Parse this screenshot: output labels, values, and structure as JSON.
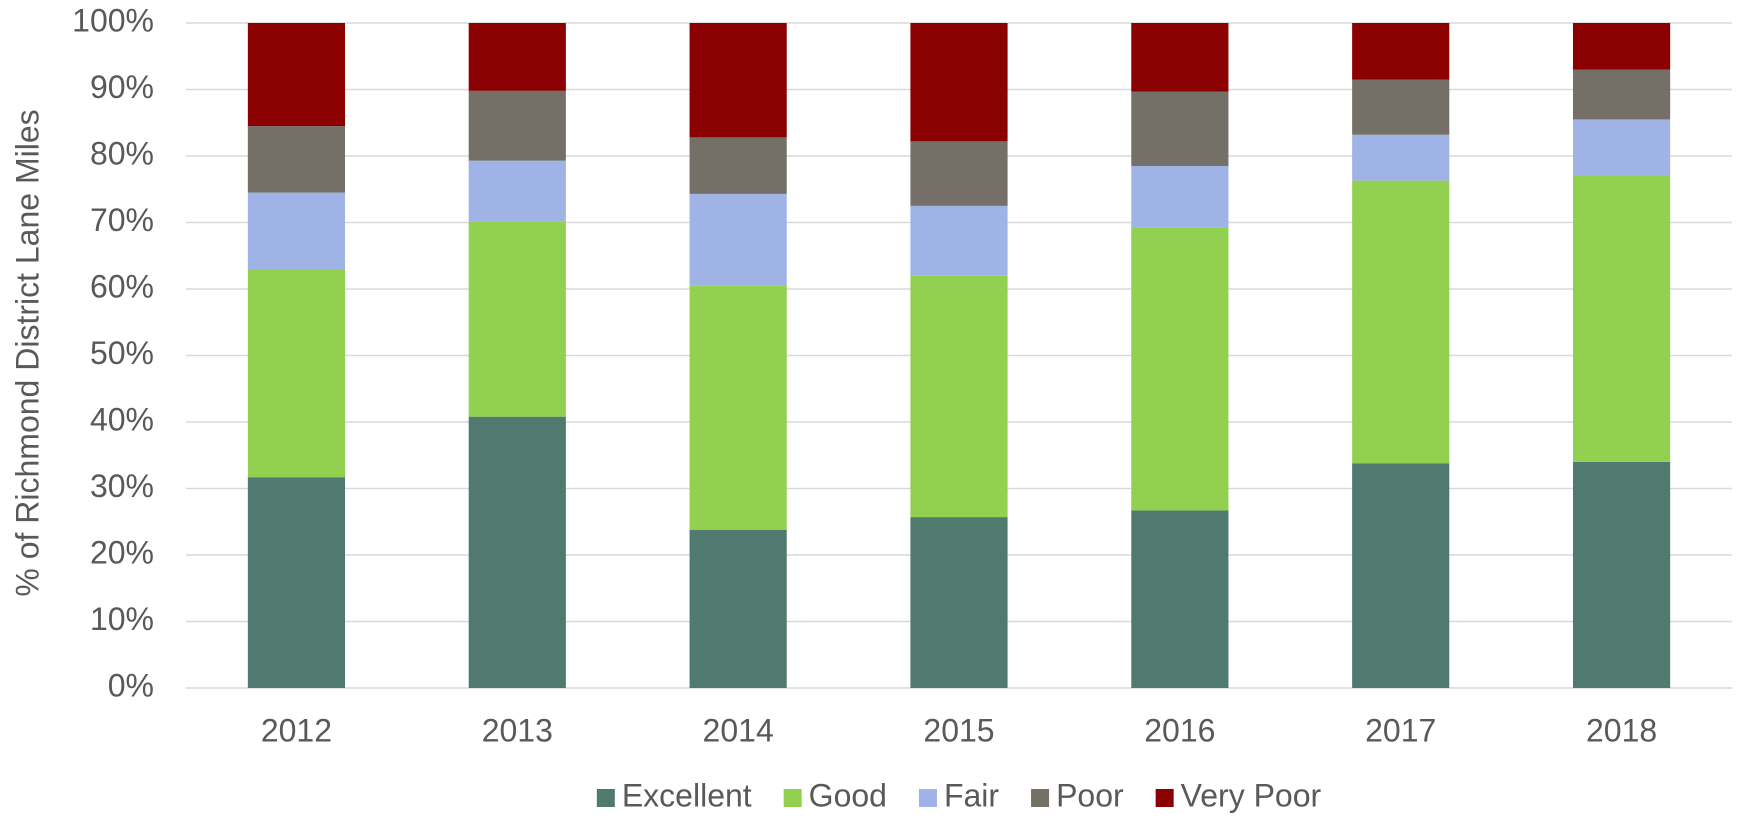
{
  "chart_data": {
    "type": "stacked_bar",
    "y_label": "% of Richmond District Lane Miles",
    "categories": [
      "2012",
      "2013",
      "2014",
      "2015",
      "2016",
      "2017",
      "2018"
    ],
    "series": [
      {
        "name": "Excellent",
        "color": "#507a70",
        "values": [
          31.7,
          40.8,
          23.8,
          25.7,
          26.7,
          33.8,
          34
        ]
      },
      {
        "name": "Good",
        "color": "#92d050",
        "values": [
          31.3,
          29.4,
          36.7,
          36.3,
          42.6,
          42.5,
          43
        ]
      },
      {
        "name": "Fair",
        "color": "#a0b3e6",
        "values": [
          11.5,
          9.1,
          13.8,
          10.5,
          9.2,
          6.9,
          8.5
        ]
      },
      {
        "name": "Poor",
        "color": "#747067",
        "values": [
          10,
          10.5,
          8.5,
          9.7,
          11.2,
          8.3,
          7.5
        ]
      },
      {
        "name": "Very Poor",
        "color": "#8b0000",
        "values": [
          15.5,
          10.2,
          17.2,
          17.8,
          10.3,
          8.5,
          7
        ]
      }
    ],
    "ylim": [
      0,
      100
    ],
    "yticks": [
      {
        "value": 0,
        "label": "0%"
      },
      {
        "value": 10,
        "label": "10%"
      },
      {
        "value": 20,
        "label": "20%"
      },
      {
        "value": 30,
        "label": "30%"
      },
      {
        "value": 40,
        "label": "40%"
      },
      {
        "value": 50,
        "label": "50%"
      },
      {
        "value": 60,
        "label": "60%"
      },
      {
        "value": 70,
        "label": "70%"
      },
      {
        "value": 80,
        "label": "80%"
      },
      {
        "value": 90,
        "label": "90%"
      },
      {
        "value": 100,
        "label": "100%"
      }
    ],
    "grid": true,
    "legend": "bottom"
  }
}
